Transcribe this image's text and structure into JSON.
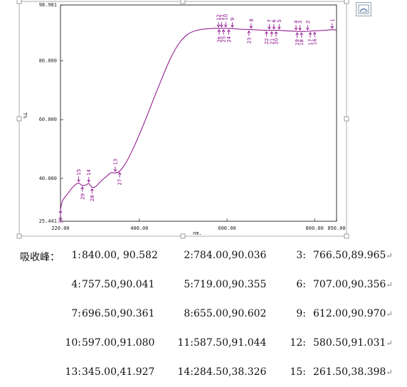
{
  "chart_data": {
    "type": "line",
    "xlabel": "nm.",
    "ylabel": "T%",
    "xlim": [
      220.0,
      850.0
    ],
    "ylim": [
      25.441,
      98.981
    ],
    "x_ticks": [
      "220.00",
      "400.00",
      "600.00",
      "800.00",
      "850.00"
    ],
    "x_tick_values": [
      220,
      400,
      600,
      800,
      850
    ],
    "y_ticks": [
      "98.981",
      "80.000",
      "60.000",
      "40.000",
      "25.441"
    ],
    "y_tick_values": [
      98.981,
      80,
      60,
      40,
      25.441
    ],
    "curve_color": "#8a0a8a",
    "series": [
      {
        "x": [
          220,
          225,
          235,
          245,
          255,
          261.5,
          270,
          280,
          284.5,
          292,
          300,
          312,
          325,
          335,
          345,
          355,
          370,
          390,
          410,
          430,
          450,
          470,
          490,
          510,
          530,
          550,
          565,
          580.5,
          597,
          612,
          630,
          655,
          680,
          696.5,
          707,
          719,
          740,
          757.5,
          766.5,
          784,
          800,
          815,
          830,
          840,
          850
        ],
        "y": [
          29.5,
          32.5,
          34.5,
          36.5,
          38.0,
          38.4,
          37.6,
          37.9,
          38.3,
          37.0,
          37.2,
          39.0,
          40.7,
          41.9,
          41.9,
          42.5,
          45.5,
          51.5,
          58.5,
          66.0,
          73.5,
          80.5,
          85.8,
          89.0,
          90.3,
          90.8,
          91.0,
          91.03,
          91.08,
          90.97,
          90.75,
          90.6,
          90.45,
          90.36,
          90.36,
          90.36,
          90.15,
          90.04,
          89.97,
          90.04,
          90.2,
          90.3,
          90.45,
          90.58,
          90.5
        ]
      }
    ],
    "peak_markers": [
      {
        "label": "1",
        "x": 840.0,
        "dir": "up"
      },
      {
        "label": "2",
        "x": 784.0,
        "dir": "up"
      },
      {
        "label": "3",
        "x": 766.5,
        "dir": "up"
      },
      {
        "label": "4",
        "x": 757.5,
        "dir": "up"
      },
      {
        "label": "5",
        "x": 719.0,
        "dir": "up"
      },
      {
        "label": "6",
        "x": 707.0,
        "dir": "up"
      },
      {
        "label": "7",
        "x": 696.5,
        "dir": "up"
      },
      {
        "label": "8",
        "x": 655.0,
        "dir": "up"
      },
      {
        "label": "9",
        "x": 612.0,
        "dir": "up"
      },
      {
        "label": "10",
        "x": 597.0,
        "dir": "up"
      },
      {
        "label": "11",
        "x": 587.5,
        "dir": "up"
      },
      {
        "label": "12",
        "x": 580.5,
        "dir": "up"
      },
      {
        "label": "13",
        "x": 345.0,
        "dir": "up"
      },
      {
        "label": "14",
        "x": 284.5,
        "dir": "up"
      },
      {
        "label": "15",
        "x": 261.5,
        "dir": "up"
      },
      {
        "label": "16",
        "x": 800.0,
        "dir": "down"
      },
      {
        "label": "17",
        "x": 790.0,
        "dir": "down"
      },
      {
        "label": "18",
        "x": 770.0,
        "dir": "down"
      },
      {
        "label": "19",
        "x": 760.0,
        "dir": "down"
      },
      {
        "label": "20",
        "x": 712.0,
        "dir": "down"
      },
      {
        "label": "21",
        "x": 702.0,
        "dir": "down"
      },
      {
        "label": "22",
        "x": 690.0,
        "dir": "down"
      },
      {
        "label": "23",
        "x": 650.0,
        "dir": "down"
      },
      {
        "label": "24",
        "x": 604.0,
        "dir": "down"
      },
      {
        "label": "25",
        "x": 592.0,
        "dir": "down"
      },
      {
        "label": "26",
        "x": 582.0,
        "dir": "down"
      },
      {
        "label": "27",
        "x": 355.0,
        "dir": "down"
      },
      {
        "label": "28",
        "x": 292.0,
        "dir": "down"
      },
      {
        "label": "29",
        "x": 270.0,
        "dir": "down"
      },
      {
        "label": "30",
        "x": 220.0,
        "dir": "down"
      }
    ]
  },
  "peaks_title": "吸收峰：",
  "peaks_rows": [
    [
      {
        "label": "1:",
        "value": "840.00, 90.582"
      },
      {
        "label": "2:",
        "value": "784.00,90.036"
      },
      {
        "label": "3:",
        "value": "766.50,89.965"
      }
    ],
    [
      {
        "label": "4:",
        "value": "757.50,90.041"
      },
      {
        "label": "5:",
        "value": "719.00,90.355"
      },
      {
        "label": "6:",
        "value": "707.00,90.356"
      }
    ],
    [
      {
        "label": "7:",
        "value": "696.50,90.361"
      },
      {
        "label": "8:",
        "value": "655.00,90.602"
      },
      {
        "label": "9:",
        "value": "612.00,90.970"
      }
    ],
    [
      {
        "label": "10:",
        "value": "597.00,91.080"
      },
      {
        "label": "11:",
        "value": "587.50,91.044"
      },
      {
        "label": "12:",
        "value": "580.50,91.031"
      }
    ],
    [
      {
        "label": "13:",
        "value": "345.00,41.927"
      },
      {
        "label": "14:",
        "value": "284.50,38.326"
      },
      {
        "label": "15:",
        "value": "261.50,38.398"
      }
    ]
  ]
}
